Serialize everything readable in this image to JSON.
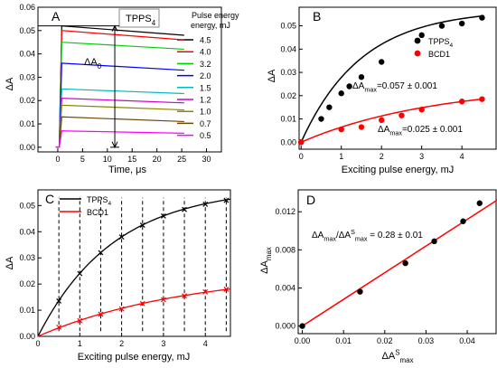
{
  "chart_data": [
    {
      "panel": "A",
      "type": "line",
      "box_label": "TPPS",
      "box_label_sub": "4",
      "legend_title": "Pulse energy, mJ",
      "annotation": "ΔA",
      "annotation_sub": "0",
      "xlabel": "Time, μs",
      "ylabel": "ΔA",
      "xlim": [
        -4,
        33
      ],
      "ylim": [
        -0.002,
        0.06
      ],
      "xticks": [
        0,
        5,
        10,
        15,
        20,
        25,
        30
      ],
      "yticks": [
        0.0,
        0.01,
        0.02,
        0.03,
        0.04,
        0.05,
        0.06
      ],
      "ytick_labels": [
        "0.00",
        "0.01",
        "0.02",
        "0.03",
        "0.04",
        "0.05",
        "0.06"
      ],
      "series": [
        {
          "name": "4.5",
          "color": "#000000",
          "start": 0.052,
          "end": 0.048
        },
        {
          "name": "4.0",
          "color": "#ff0000",
          "start": 0.05,
          "end": 0.046
        },
        {
          "name": "3.2",
          "color": "#00cc00",
          "start": 0.045,
          "end": 0.042
        },
        {
          "name": "2.0",
          "color": "#0000ff",
          "start": 0.036,
          "end": 0.033
        },
        {
          "name": "1.5",
          "color": "#00bbbb",
          "start": 0.025,
          "end": 0.023
        },
        {
          "name": "1.2",
          "color": "#cc00cc",
          "start": 0.021,
          "end": 0.019
        },
        {
          "name": "1.0",
          "color": "#888800",
          "start": 0.018,
          "end": 0.016
        },
        {
          "name": "0.7",
          "color": "#6b4a00",
          "start": 0.013,
          "end": 0.011
        },
        {
          "name": "0.5",
          "color": "#ff00ff",
          "start": 0.007,
          "end": 0.006
        }
      ]
    },
    {
      "panel": "B",
      "type": "scatter",
      "xlabel": "Exciting pulse energy, mJ",
      "ylabel": "ΔA",
      "xlim": [
        -0.05,
        4.85
      ],
      "ylim": [
        -0.003,
        0.058
      ],
      "xticks": [
        0,
        1,
        2,
        3,
        4
      ],
      "yticks": [
        0.0,
        0.01,
        0.02,
        0.03,
        0.04,
        0.05
      ],
      "ytick_labels": [
        "0.00",
        "0.01",
        "0.02",
        "0.03",
        "0.04",
        "0.05"
      ],
      "series": [
        {
          "name": "TPPS",
          "name_sub": "4",
          "color": "#000000",
          "x": [
            0,
            0.5,
            0.7,
            1.0,
            1.2,
            1.5,
            2.0,
            3.0,
            3.5,
            4.0,
            4.5
          ],
          "y": [
            0,
            0.01,
            0.015,
            0.021,
            0.024,
            0.028,
            0.0345,
            0.046,
            0.05,
            0.051,
            0.0535
          ],
          "fit_amax": 0.057,
          "fit_k": 0.67
        },
        {
          "name": "BCD1",
          "color": "#ff0000",
          "x": [
            0,
            1.0,
            1.5,
            2.0,
            2.5,
            3.0,
            4.0,
            4.5
          ],
          "y": [
            0,
            0.0055,
            0.0065,
            0.0095,
            0.0115,
            0.014,
            0.0175,
            0.0185
          ],
          "fit_amax": 0.025,
          "fit_k": 0.3
        }
      ],
      "annotations": [
        {
          "text": "ΔA",
          "sub": "max",
          "rest": "=0.057 ± 0.001",
          "color": "#000000"
        },
        {
          "text": "ΔA",
          "sub": "max",
          "rest": "=0.025 ± 0.001",
          "color": "#ff0000"
        }
      ]
    },
    {
      "panel": "C",
      "type": "line",
      "xlabel": "Exciting pulse energy, mJ",
      "ylabel": "ΔA",
      "xlim": [
        0,
        4.6
      ],
      "ylim": [
        0,
        0.056
      ],
      "xticks": [
        0,
        1,
        2,
        3,
        4
      ],
      "yticks": [
        0.0,
        0.01,
        0.02,
        0.03,
        0.04,
        0.05
      ],
      "ytick_labels": [
        "0.00",
        "0.01",
        "0.02",
        "0.03",
        "0.04",
        "0.05"
      ],
      "dashed_x": [
        0.5,
        1.0,
        1.5,
        2.0,
        2.5,
        3.0,
        3.5,
        4.0,
        4.5
      ],
      "series": [
        {
          "name": "TPPS",
          "name_sub": "4",
          "color": "#000000",
          "fit_amax": 0.057,
          "fit_k": 0.55,
          "x": [
            0.5,
            1.0,
            1.5,
            2.0,
            2.5,
            3.0,
            3.5,
            4.0,
            4.5
          ],
          "y": [
            0.0135,
            0.024,
            0.032,
            0.038,
            0.0425,
            0.046,
            0.0485,
            0.0505,
            0.052
          ]
        },
        {
          "name": "BCD1",
          "color": "#ff0000",
          "fit_amax": 0.025,
          "fit_k": 0.28,
          "x": [
            0.5,
            1.0,
            1.5,
            2.0,
            2.5,
            3.0,
            3.5,
            4.0,
            4.5
          ],
          "y": [
            0.0035,
            0.006,
            0.0085,
            0.0105,
            0.0125,
            0.014,
            0.0155,
            0.017,
            0.018
          ]
        }
      ]
    },
    {
      "panel": "D",
      "type": "scatter",
      "annotation": {
        "a": "ΔA",
        "a_sub": "max",
        "b": "/ΔA",
        "b_sup": "S",
        "b_sub": "max",
        "rest": " = 0.28 ± 0.01"
      },
      "xlabel": "ΔA",
      "xlabel_sup": "S",
      "xlabel_sub": "max",
      "ylabel": "ΔA",
      "ylabel_sub": "max",
      "xlim": [
        -0.001,
        0.047
      ],
      "ylim": [
        -0.0008,
        0.0143
      ],
      "xticks": [
        0.0,
        0.01,
        0.02,
        0.03,
        0.04
      ],
      "xtick_labels": [
        "0.00",
        "0.01",
        "0.02",
        "0.03",
        "0.04"
      ],
      "yticks": [
        0.0,
        0.004,
        0.008,
        0.012
      ],
      "ytick_labels": [
        "0.000",
        "0.004",
        "0.008",
        "0.012"
      ],
      "slope": 0.28,
      "series": [
        {
          "color": "#000000",
          "x": [
            0.0,
            0.014,
            0.025,
            0.032,
            0.039,
            0.043
          ],
          "y": [
            0.0,
            0.0036,
            0.0066,
            0.0089,
            0.011,
            0.0129
          ]
        }
      ]
    }
  ]
}
